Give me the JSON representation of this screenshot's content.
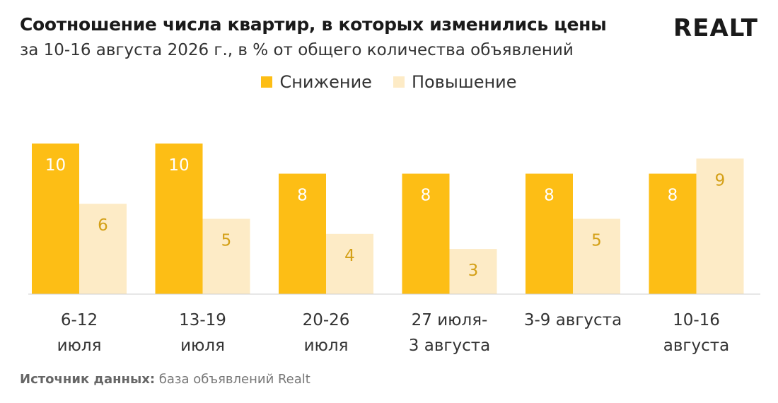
{
  "header": {
    "title": "Соотношение числа квартир, в которых изменились цены",
    "subtitle": "за 10-16 августа 2026 г., в % от общего количества объявлений",
    "logo_text": "REALT"
  },
  "legend": {
    "items": [
      {
        "label": "Снижение",
        "color": "#FDBE15"
      },
      {
        "label": "Повышение",
        "color": "#FDEBC6"
      }
    ]
  },
  "footer": {
    "source_label": "Источник данных:",
    "source_text": " база объявлений Realt"
  },
  "chart_data": {
    "type": "bar",
    "categories": [
      [
        "6-12",
        "июля"
      ],
      [
        "13-19",
        "июля"
      ],
      [
        "20-26",
        "июля"
      ],
      [
        "27 июля-",
        "3 августа"
      ],
      [
        "3-9 августа"
      ],
      [
        "10-16",
        "августа"
      ]
    ],
    "series": [
      {
        "name": "Снижение",
        "values": [
          10,
          10,
          8,
          8,
          8,
          8
        ],
        "color": "#FDBE15",
        "label_color": "#ffffff"
      },
      {
        "name": "Повышение",
        "values": [
          6,
          5,
          4,
          3,
          5,
          9
        ],
        "color": "#FDEBC6",
        "label_color": "#D4A017"
      }
    ],
    "title": "Соотношение числа квартир, в которых изменились цены",
    "ylim": [
      0,
      10
    ],
    "grid": false,
    "legend_position": "top-center"
  }
}
